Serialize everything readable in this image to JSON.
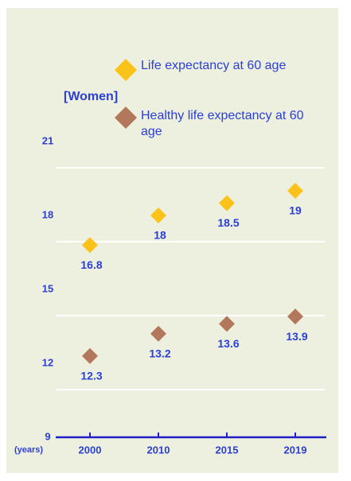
{
  "chart_data": {
    "type": "scatter",
    "title": "[Women]",
    "x_label": "(years)",
    "categories": [
      "2000",
      "2010",
      "2015",
      "2019"
    ],
    "series": [
      {
        "name": "Life expectancy at 60 age",
        "color": "#fbc21a",
        "values": [
          16.8,
          18,
          18.5,
          19
        ]
      },
      {
        "name": "Healthy life expectancy at 60 age",
        "color": "#b3785b",
        "values": [
          12.3,
          13.2,
          13.6,
          13.9
        ]
      }
    ],
    "ylim": [
      9,
      21
    ],
    "yticks": [
      9,
      12,
      15,
      18,
      21
    ],
    "grid": true
  }
}
